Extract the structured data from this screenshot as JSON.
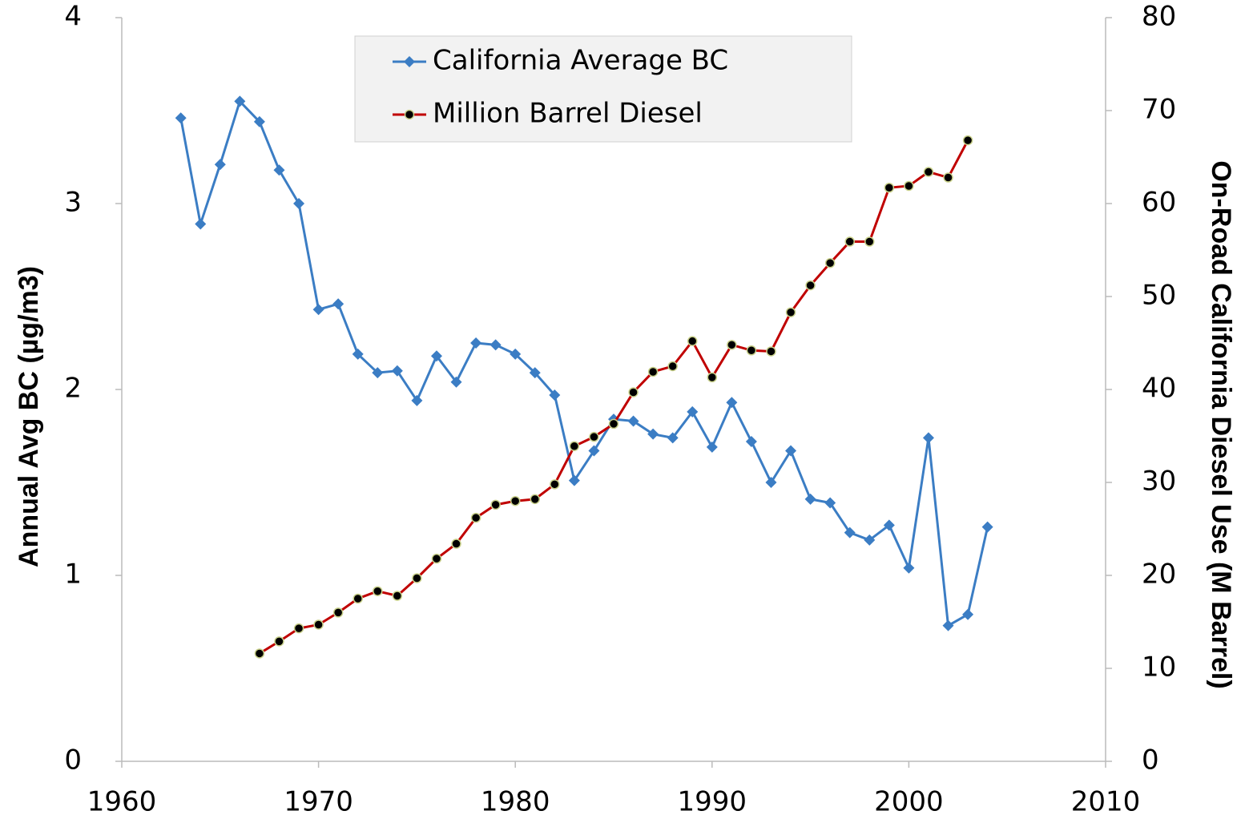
{
  "chart_data": {
    "type": "line",
    "xlabel": null,
    "ylabel": "Annual Avg BC (µg/m3)",
    "y2label": "On-Road California Diesel Use (M Barrel)",
    "xlim": [
      1960,
      2010
    ],
    "xticks": [
      1960,
      1970,
      1980,
      1990,
      2000,
      2010
    ],
    "ylim": [
      0,
      4
    ],
    "yticks": [
      0,
      1,
      2,
      3,
      4
    ],
    "y2lim": [
      0,
      80
    ],
    "y2ticks": [
      0,
      10,
      20,
      30,
      40,
      50,
      60,
      70,
      80
    ],
    "legend": "top-center",
    "series": [
      {
        "name": "California Average BC",
        "color": "#3b7dc4",
        "marker": "diamond",
        "x": [
          1963,
          1964,
          1965,
          1966,
          1967,
          1968,
          1969,
          1970,
          1971,
          1972,
          1973,
          1974,
          1975,
          1976,
          1977,
          1978,
          1979,
          1980,
          1981,
          1982,
          1983,
          1984,
          1985,
          1986,
          1987,
          1988,
          1989,
          1990,
          1991,
          1992,
          1993,
          1994,
          1995,
          1996,
          1997,
          1998,
          1999,
          2000,
          2001,
          2002,
          2003,
          2004
        ],
        "values": [
          3.46,
          2.89,
          3.21,
          3.55,
          3.44,
          3.18,
          3.0,
          2.43,
          2.46,
          2.19,
          2.09,
          2.1,
          1.94,
          2.18,
          2.04,
          2.25,
          2.24,
          2.19,
          2.09,
          1.97,
          1.51,
          1.67,
          1.84,
          1.83,
          1.76,
          1.74,
          1.88,
          1.69,
          1.93,
          1.72,
          1.5,
          1.67,
          1.41,
          1.39,
          1.23,
          1.19,
          1.27,
          1.04,
          1.74,
          0.73,
          0.79,
          1.26
        ]
      },
      {
        "name": "Million Barrel Diesel",
        "color": "#c00000",
        "marker": "circle",
        "axis": "y2",
        "x": [
          1967,
          1968,
          1969,
          1970,
          1971,
          1972,
          1973,
          1974,
          1975,
          1976,
          1977,
          1978,
          1979,
          1980,
          1981,
          1982,
          1983,
          1984,
          1985,
          1986,
          1987,
          1988,
          1989,
          1990,
          1991,
          1992,
          1993,
          1994,
          1995,
          1996,
          1997,
          1998,
          1999,
          2000,
          2001,
          2002,
          2003
        ],
        "values": [
          11.6,
          12.9,
          14.3,
          14.7,
          16.0,
          17.5,
          18.3,
          17.8,
          19.7,
          21.8,
          23.4,
          26.2,
          27.6,
          28.0,
          28.2,
          29.8,
          33.9,
          34.9,
          36.3,
          39.7,
          41.9,
          42.5,
          45.2,
          41.3,
          44.8,
          44.2,
          44.1,
          48.3,
          51.2,
          53.6,
          55.9,
          55.9,
          61.7,
          61.9,
          63.4,
          62.8,
          66.8
        ]
      }
    ]
  }
}
